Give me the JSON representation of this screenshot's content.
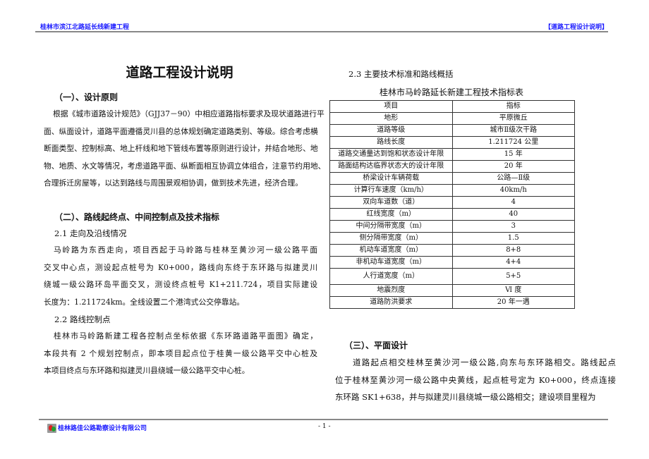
{
  "header": {
    "project": "桂林市滨江北路延长线新建工程",
    "section": "【道路工程设计说明】"
  },
  "title": "道路工程设计说明",
  "sec1": {
    "heading": "（一）、设计原则",
    "lines": [
      "根据《城市道路设计规范》（GJJ37－90）中相应道路指标要求及现状道路进行平",
      "面、纵面设计，道路平面遵循灵川县的总体规划确定道路类别、等级。综合考虑横",
      "断面类型、控制标高、地上杆线和地下管线布置等原则进行设计，并结合地形、地",
      "物、地质、水文等情况，考虑道路平面、纵断面相互协调立体组合，注意节约用地、",
      "合理拆迁房屋等，以达到路线与周围景观相协调，做到技术先进，经济合理。"
    ]
  },
  "sec2": {
    "heading": "（二）、路线起终点、中间控制点及技术指标",
    "s21": {
      "heading": "2.1 走向及沿线情况",
      "lines": [
        "马岭路为东西走向，项目西起于马岭路与桂林至黄沙河一级公路平面",
        "交叉中心点，测设起点桩号为 K0+000，路线向东终于东环路与拟建灵川",
        "绕城一级公路环岛平面交叉，测设终点桩号 K1+211.724，项目实际建设",
        "长度为：1.211724km。全线设置二个港湾式公交停靠站。"
      ]
    },
    "s22": {
      "heading": "2.2 路线控制点",
      "lines": [
        "桂林市马岭路新建工程各控制点坐标依据《东环路道路平面图》确定，",
        "本段共有 2 个规划控制点，即本项目起点位于桂黄一级公路平交中心桩及",
        "本项目终点与东环路和拟建灵川县绕城一级公路平交中心桩。"
      ]
    },
    "s23": {
      "heading": "2.3  主要技术标准和路线概括",
      "table_title": "桂林市马岭路延长新建工程技术指标表",
      "columns": [
        "项目",
        "指标"
      ],
      "rows": [
        [
          "地形",
          "平原微丘"
        ],
        [
          "道路等级",
          "城市Ⅱ级次干路"
        ],
        [
          "路线长度",
          "1.211724 公里"
        ],
        [
          "道路交通量达到饱和状态设计年限",
          "15 年"
        ],
        [
          "路面结构达临界状态大的设计年限",
          "20 年"
        ],
        [
          "桥梁设计车辆荷载",
          "公路—Ⅱ级"
        ],
        [
          "计算行车速度（km/h）",
          "40km/h"
        ],
        [
          "双向车道数（道）",
          "4"
        ],
        [
          "红线宽度（m）",
          "40"
        ],
        [
          "中间分隔带宽度（m）",
          "3"
        ],
        [
          "侧分隔带宽度（m）",
          "1.5"
        ],
        [
          "机动车道宽度（m）",
          "8+8"
        ],
        [
          "非机动车道宽度（m）",
          "4+4"
        ],
        [
          "人行道宽度（m）",
          "5+5"
        ],
        [
          "地震烈度",
          "Ⅵ 度"
        ],
        [
          "道路防洪要求",
          "20 年一遇"
        ]
      ]
    }
  },
  "sec3": {
    "heading": "（三）、平面设计",
    "lines": [
      "道路起点相交桂林至黄沙河一级公路,向东与东环路相交。路线起点",
      "位于桂林至黄沙河一级公路中央黄线，起点桩号定为 K0+000，终点连接",
      "东环路 SK1+638，并与拟建灵川县绕城一级公路相交；建设项目里程为"
    ]
  },
  "footer": {
    "company": "桂林路佳公路勘察设计有限公司",
    "page": "- 1 -"
  },
  "colors": {
    "header_text": "#1a1aff",
    "rule": "#888888"
  }
}
